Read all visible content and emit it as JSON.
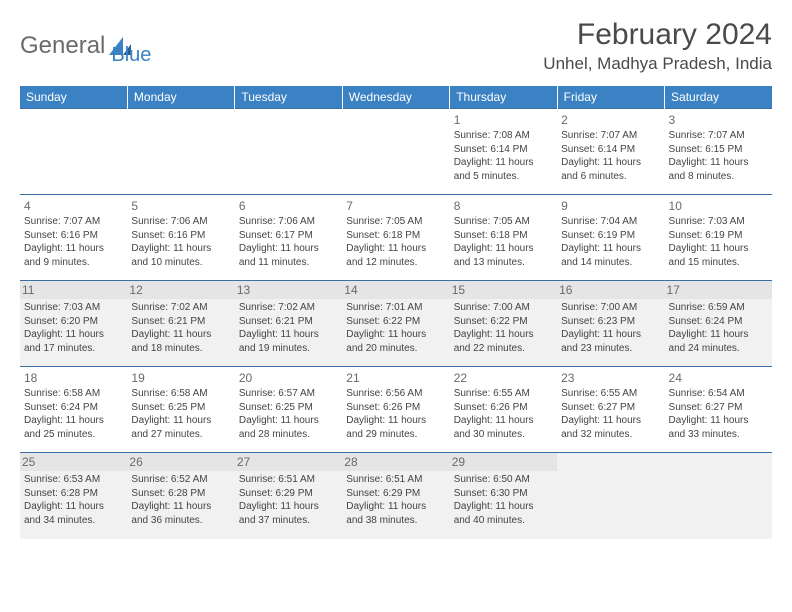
{
  "brand": {
    "general": "General",
    "blue": "Blue"
  },
  "title": "February 2024",
  "location": "Unhel, Madhya Pradesh, India",
  "colors": {
    "header_bg": "#3b82c4",
    "header_text": "#ffffff",
    "row_border": "#3b6fa3",
    "shade_bg": "#f1f1f1",
    "text": "#444444",
    "title_text": "#4a4a4a"
  },
  "typography": {
    "title_fontsize": 30,
    "location_fontsize": 17,
    "dayheader_fontsize": 12,
    "daynum_fontsize": 12,
    "body_fontsize": 10
  },
  "day_labels": [
    "Sunday",
    "Monday",
    "Tuesday",
    "Wednesday",
    "Thursday",
    "Friday",
    "Saturday"
  ],
  "weeks": [
    {
      "shaded": false,
      "days": [
        null,
        null,
        null,
        null,
        {
          "n": "1",
          "sunrise": "Sunrise: 7:08 AM",
          "sunset": "Sunset: 6:14 PM",
          "day1": "Daylight: 11 hours",
          "day2": "and 5 minutes."
        },
        {
          "n": "2",
          "sunrise": "Sunrise: 7:07 AM",
          "sunset": "Sunset: 6:14 PM",
          "day1": "Daylight: 11 hours",
          "day2": "and 6 minutes."
        },
        {
          "n": "3",
          "sunrise": "Sunrise: 7:07 AM",
          "sunset": "Sunset: 6:15 PM",
          "day1": "Daylight: 11 hours",
          "day2": "and 8 minutes."
        }
      ]
    },
    {
      "shaded": false,
      "days": [
        {
          "n": "4",
          "sunrise": "Sunrise: 7:07 AM",
          "sunset": "Sunset: 6:16 PM",
          "day1": "Daylight: 11 hours",
          "day2": "and 9 minutes."
        },
        {
          "n": "5",
          "sunrise": "Sunrise: 7:06 AM",
          "sunset": "Sunset: 6:16 PM",
          "day1": "Daylight: 11 hours",
          "day2": "and 10 minutes."
        },
        {
          "n": "6",
          "sunrise": "Sunrise: 7:06 AM",
          "sunset": "Sunset: 6:17 PM",
          "day1": "Daylight: 11 hours",
          "day2": "and 11 minutes."
        },
        {
          "n": "7",
          "sunrise": "Sunrise: 7:05 AM",
          "sunset": "Sunset: 6:18 PM",
          "day1": "Daylight: 11 hours",
          "day2": "and 12 minutes."
        },
        {
          "n": "8",
          "sunrise": "Sunrise: 7:05 AM",
          "sunset": "Sunset: 6:18 PM",
          "day1": "Daylight: 11 hours",
          "day2": "and 13 minutes."
        },
        {
          "n": "9",
          "sunrise": "Sunrise: 7:04 AM",
          "sunset": "Sunset: 6:19 PM",
          "day1": "Daylight: 11 hours",
          "day2": "and 14 minutes."
        },
        {
          "n": "10",
          "sunrise": "Sunrise: 7:03 AM",
          "sunset": "Sunset: 6:19 PM",
          "day1": "Daylight: 11 hours",
          "day2": "and 15 minutes."
        }
      ]
    },
    {
      "shaded": true,
      "days": [
        {
          "n": "11",
          "sunrise": "Sunrise: 7:03 AM",
          "sunset": "Sunset: 6:20 PM",
          "day1": "Daylight: 11 hours",
          "day2": "and 17 minutes."
        },
        {
          "n": "12",
          "sunrise": "Sunrise: 7:02 AM",
          "sunset": "Sunset: 6:21 PM",
          "day1": "Daylight: 11 hours",
          "day2": "and 18 minutes."
        },
        {
          "n": "13",
          "sunrise": "Sunrise: 7:02 AM",
          "sunset": "Sunset: 6:21 PM",
          "day1": "Daylight: 11 hours",
          "day2": "and 19 minutes."
        },
        {
          "n": "14",
          "sunrise": "Sunrise: 7:01 AM",
          "sunset": "Sunset: 6:22 PM",
          "day1": "Daylight: 11 hours",
          "day2": "and 20 minutes."
        },
        {
          "n": "15",
          "sunrise": "Sunrise: 7:00 AM",
          "sunset": "Sunset: 6:22 PM",
          "day1": "Daylight: 11 hours",
          "day2": "and 22 minutes."
        },
        {
          "n": "16",
          "sunrise": "Sunrise: 7:00 AM",
          "sunset": "Sunset: 6:23 PM",
          "day1": "Daylight: 11 hours",
          "day2": "and 23 minutes."
        },
        {
          "n": "17",
          "sunrise": "Sunrise: 6:59 AM",
          "sunset": "Sunset: 6:24 PM",
          "day1": "Daylight: 11 hours",
          "day2": "and 24 minutes."
        }
      ]
    },
    {
      "shaded": false,
      "days": [
        {
          "n": "18",
          "sunrise": "Sunrise: 6:58 AM",
          "sunset": "Sunset: 6:24 PM",
          "day1": "Daylight: 11 hours",
          "day2": "and 25 minutes."
        },
        {
          "n": "19",
          "sunrise": "Sunrise: 6:58 AM",
          "sunset": "Sunset: 6:25 PM",
          "day1": "Daylight: 11 hours",
          "day2": "and 27 minutes."
        },
        {
          "n": "20",
          "sunrise": "Sunrise: 6:57 AM",
          "sunset": "Sunset: 6:25 PM",
          "day1": "Daylight: 11 hours",
          "day2": "and 28 minutes."
        },
        {
          "n": "21",
          "sunrise": "Sunrise: 6:56 AM",
          "sunset": "Sunset: 6:26 PM",
          "day1": "Daylight: 11 hours",
          "day2": "and 29 minutes."
        },
        {
          "n": "22",
          "sunrise": "Sunrise: 6:55 AM",
          "sunset": "Sunset: 6:26 PM",
          "day1": "Daylight: 11 hours",
          "day2": "and 30 minutes."
        },
        {
          "n": "23",
          "sunrise": "Sunrise: 6:55 AM",
          "sunset": "Sunset: 6:27 PM",
          "day1": "Daylight: 11 hours",
          "day2": "and 32 minutes."
        },
        {
          "n": "24",
          "sunrise": "Sunrise: 6:54 AM",
          "sunset": "Sunset: 6:27 PM",
          "day1": "Daylight: 11 hours",
          "day2": "and 33 minutes."
        }
      ]
    },
    {
      "shaded": true,
      "days": [
        {
          "n": "25",
          "sunrise": "Sunrise: 6:53 AM",
          "sunset": "Sunset: 6:28 PM",
          "day1": "Daylight: 11 hours",
          "day2": "and 34 minutes."
        },
        {
          "n": "26",
          "sunrise": "Sunrise: 6:52 AM",
          "sunset": "Sunset: 6:28 PM",
          "day1": "Daylight: 11 hours",
          "day2": "and 36 minutes."
        },
        {
          "n": "27",
          "sunrise": "Sunrise: 6:51 AM",
          "sunset": "Sunset: 6:29 PM",
          "day1": "Daylight: 11 hours",
          "day2": "and 37 minutes."
        },
        {
          "n": "28",
          "sunrise": "Sunrise: 6:51 AM",
          "sunset": "Sunset: 6:29 PM",
          "day1": "Daylight: 11 hours",
          "day2": "and 38 minutes."
        },
        {
          "n": "29",
          "sunrise": "Sunrise: 6:50 AM",
          "sunset": "Sunset: 6:30 PM",
          "day1": "Daylight: 11 hours",
          "day2": "and 40 minutes."
        },
        null,
        null
      ]
    }
  ]
}
